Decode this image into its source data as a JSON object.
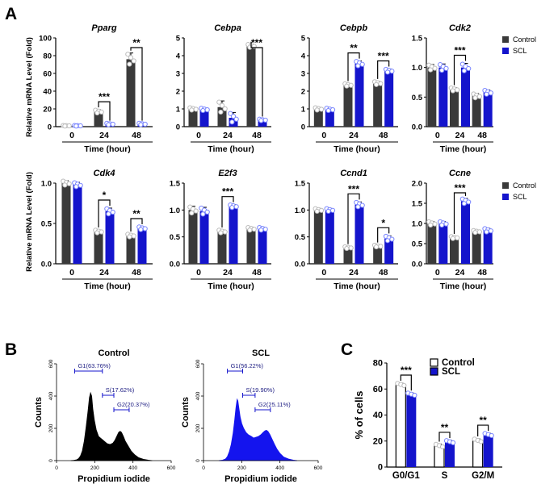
{
  "panel_letters": {
    "a": "A",
    "b": "B",
    "c": "C"
  },
  "colors": {
    "control": "#3a3a3a",
    "scl": "#1414cc",
    "histogram_control": "#000000",
    "histogram_scl": "#1414ee",
    "dot_control": "#bdbdbd",
    "dot_scl": "#7a86ff",
    "gate": "#1414cc"
  },
  "panel_a": {
    "ylabel": "Relative mRNA Level (Fold)",
    "xlabel": "Time (hour)",
    "legend": [
      "Control",
      "SCL"
    ]
  },
  "panel_b": {
    "xlabel": "Propidium iodide",
    "ylabel": "Counts"
  },
  "chart_data": [
    {
      "type": "bar",
      "title": "Pparg",
      "categories": [
        "0",
        "24",
        "48"
      ],
      "xlabel": "Time (hour)",
      "ylabel": "Relative mRNA Level (Fold)",
      "ylim": [
        0,
        100
      ],
      "yticks": [
        "0",
        "20",
        "40",
        "60",
        "80",
        "100"
      ],
      "series": [
        {
          "name": "Control",
          "values": [
            1,
            17,
            76
          ],
          "errors": [
            0.4,
            2,
            7
          ]
        },
        {
          "name": "SCL",
          "values": [
            1,
            3,
            3
          ],
          "errors": [
            0.4,
            1,
            1
          ]
        }
      ],
      "significance": [
        {
          "category": "24",
          "label": "***"
        },
        {
          "category": "48",
          "label": "**"
        }
      ]
    },
    {
      "type": "bar",
      "title": "Cebpa",
      "categories": [
        "0",
        "24",
        "48"
      ],
      "xlabel": "Time (hour)",
      "ylim": [
        0,
        5
      ],
      "yticks": [
        "0",
        "1",
        "2",
        "3",
        "4",
        "5"
      ],
      "series": [
        {
          "name": "Control",
          "values": [
            1.0,
            1.1,
            4.55
          ],
          "errors": [
            0.08,
            0.35,
            0.1
          ]
        },
        {
          "name": "SCL",
          "values": [
            0.97,
            0.5,
            0.38
          ],
          "errors": [
            0.08,
            0.3,
            0.05
          ]
        }
      ],
      "significance": [
        {
          "category": "48",
          "label": "***"
        }
      ]
    },
    {
      "type": "bar",
      "title": "Cebpb",
      "categories": [
        "0",
        "24",
        "48"
      ],
      "xlabel": "Time (hour)",
      "ylim": [
        0,
        5
      ],
      "yticks": [
        "0",
        "1",
        "2",
        "3",
        "4",
        "5"
      ],
      "series": [
        {
          "name": "Control",
          "values": [
            1.0,
            2.35,
            2.45
          ],
          "errors": [
            0.08,
            0.08,
            0.1
          ]
        },
        {
          "name": "SCL",
          "values": [
            0.97,
            3.55,
            3.15
          ],
          "errors": [
            0.08,
            0.15,
            0.1
          ]
        }
      ],
      "significance": [
        {
          "category": "24",
          "label": "**"
        },
        {
          "category": "48",
          "label": "***"
        }
      ]
    },
    {
      "type": "bar",
      "title": "Cdk2",
      "categories": [
        "0",
        "24",
        "48"
      ],
      "xlabel": "Time (hour)",
      "ylim": [
        0,
        1.5
      ],
      "yticks": [
        "0.0",
        "0.5",
        "1.0",
        "1.5"
      ],
      "series": [
        {
          "name": "Control",
          "values": [
            1.0,
            0.63,
            0.52
          ],
          "errors": [
            0.05,
            0.03,
            0.04
          ]
        },
        {
          "name": "SCL",
          "values": [
            1.0,
            1.0,
            0.58
          ],
          "errors": [
            0.06,
            0.07,
            0.04
          ]
        }
      ],
      "significance": [
        {
          "category": "24",
          "label": "***"
        }
      ],
      "legend": [
        "Control",
        "SCL"
      ]
    },
    {
      "type": "bar",
      "title": "Cdk4",
      "categories": [
        "0",
        "24",
        "48"
      ],
      "xlabel": "Time (hour)",
      "ylabel": "Relative mRNA Level (Fold)",
      "ylim": [
        0,
        1.0
      ],
      "yticks": [
        "0.0",
        "0.5",
        "1.0"
      ],
      "series": [
        {
          "name": "Control",
          "values": [
            1.0,
            0.4,
            0.35
          ],
          "errors": [
            0.03,
            0.02,
            0.02
          ]
        },
        {
          "name": "SCL",
          "values": [
            0.98,
            0.65,
            0.44
          ],
          "errors": [
            0.03,
            0.04,
            0.02
          ]
        }
      ],
      "significance": [
        {
          "category": "24",
          "label": "*"
        },
        {
          "category": "48",
          "label": "**"
        }
      ]
    },
    {
      "type": "bar",
      "title": "E2f3",
      "categories": [
        "0",
        "24",
        "48"
      ],
      "xlabel": "Time (hour)",
      "ylim": [
        0,
        1.5
      ],
      "yticks": [
        "0.0",
        "0.5",
        "1.0",
        "1.5"
      ],
      "series": [
        {
          "name": "Control",
          "values": [
            1.0,
            0.6,
            0.65
          ],
          "errors": [
            0.07,
            0.03,
            0.03
          ]
        },
        {
          "name": "SCL",
          "values": [
            0.98,
            1.07,
            0.65
          ],
          "errors": [
            0.07,
            0.03,
            0.03
          ]
        }
      ],
      "significance": [
        {
          "category": "24",
          "label": "***"
        }
      ]
    },
    {
      "type": "bar",
      "title": "Ccnd1",
      "categories": [
        "0",
        "24",
        "48"
      ],
      "xlabel": "Time (hour)",
      "ylim": [
        0,
        1.5
      ],
      "yticks": [
        "0.0",
        "0.5",
        "1.0",
        "1.5"
      ],
      "series": [
        {
          "name": "Control",
          "values": [
            1.0,
            0.3,
            0.33
          ],
          "errors": [
            0.03,
            0.02,
            0.02
          ]
        },
        {
          "name": "SCL",
          "values": [
            1.0,
            1.1,
            0.47
          ],
          "errors": [
            0.03,
            0.05,
            0.05
          ]
        }
      ],
      "significance": [
        {
          "category": "24",
          "label": "***"
        },
        {
          "category": "48",
          "label": "*"
        }
      ]
    },
    {
      "type": "bar",
      "title": "Ccne",
      "categories": [
        "0",
        "24",
        "48"
      ],
      "xlabel": "Time (hour)",
      "ylim": [
        0,
        2.0
      ],
      "yticks": [
        "0.0",
        "0.5",
        "1.0",
        "1.5",
        "2.0"
      ],
      "series": [
        {
          "name": "Control",
          "values": [
            1.0,
            0.65,
            0.8
          ],
          "errors": [
            0.05,
            0.03,
            0.03
          ]
        },
        {
          "name": "SCL",
          "values": [
            1.0,
            1.55,
            0.83
          ],
          "errors": [
            0.05,
            0.07,
            0.05
          ]
        }
      ],
      "significance": [
        {
          "category": "24",
          "label": "***"
        }
      ],
      "legend": [
        "Control",
        "SCL"
      ]
    },
    {
      "type": "histogram",
      "title": "Control",
      "xlabel": "Propidium iodide",
      "ylabel": "Counts",
      "xlim": [
        0,
        600
      ],
      "ylim": [
        0,
        600
      ],
      "xticks": [
        "0",
        "200",
        "400",
        "600"
      ],
      "yticks": [
        "0",
        "200",
        "400",
        "600"
      ],
      "density": [
        [
          75,
          0
        ],
        [
          90,
          2
        ],
        [
          105,
          5
        ],
        [
          115,
          12
        ],
        [
          125,
          28
        ],
        [
          135,
          60
        ],
        [
          145,
          120
        ],
        [
          155,
          210
        ],
        [
          165,
          310
        ],
        [
          172,
          390
        ],
        [
          178,
          420
        ],
        [
          184,
          400
        ],
        [
          190,
          320
        ],
        [
          198,
          250
        ],
        [
          208,
          190
        ],
        [
          220,
          150
        ],
        [
          235,
          135
        ],
        [
          250,
          120
        ],
        [
          265,
          105
        ],
        [
          280,
          100
        ],
        [
          295,
          108
        ],
        [
          305,
          125
        ],
        [
          315,
          150
        ],
        [
          325,
          175
        ],
        [
          333,
          182
        ],
        [
          340,
          175
        ],
        [
          350,
          150
        ],
        [
          360,
          120
        ],
        [
          375,
          90
        ],
        [
          390,
          60
        ],
        [
          410,
          35
        ],
        [
          430,
          18
        ],
        [
          455,
          8
        ],
        [
          480,
          3
        ],
        [
          500,
          0
        ]
      ],
      "gates": [
        {
          "label": "G1(63.76%)",
          "from": 95,
          "to": 240
        },
        {
          "label": "S(17.62%)",
          "from": 240,
          "to": 300
        },
        {
          "label": "G2(20.37%)",
          "from": 300,
          "to": 380
        }
      ]
    },
    {
      "type": "histogram",
      "title": "SCL",
      "xlabel": "Propidium iodide",
      "ylabel": "Counts",
      "xlim": [
        0,
        600
      ],
      "ylim": [
        0,
        600
      ],
      "xticks": [
        "0",
        "200",
        "400",
        "600"
      ],
      "yticks": [
        "0",
        "200",
        "400",
        "600"
      ],
      "density": [
        [
          80,
          0
        ],
        [
          100,
          3
        ],
        [
          115,
          10
        ],
        [
          125,
          25
        ],
        [
          135,
          55
        ],
        [
          145,
          100
        ],
        [
          155,
          170
        ],
        [
          163,
          250
        ],
        [
          170,
          330
        ],
        [
          176,
          380
        ],
        [
          180,
          370
        ],
        [
          186,
          320
        ],
        [
          192,
          270
        ],
        [
          200,
          230
        ],
        [
          210,
          200
        ],
        [
          222,
          175
        ],
        [
          235,
          160
        ],
        [
          250,
          150
        ],
        [
          262,
          140
        ],
        [
          275,
          145
        ],
        [
          288,
          150
        ],
        [
          300,
          160
        ],
        [
          312,
          175
        ],
        [
          322,
          185
        ],
        [
          330,
          188
        ],
        [
          338,
          180
        ],
        [
          348,
          160
        ],
        [
          360,
          130
        ],
        [
          372,
          100
        ],
        [
          385,
          70
        ],
        [
          400,
          45
        ],
        [
          420,
          22
        ],
        [
          445,
          10
        ],
        [
          470,
          3
        ],
        [
          490,
          0
        ]
      ],
      "gates": [
        {
          "label": "G1(56.22%)",
          "from": 125,
          "to": 205
        },
        {
          "label": "S(19.90%)",
          "from": 205,
          "to": 270
        },
        {
          "label": "G2(25.11%)",
          "from": 270,
          "to": 350
        }
      ]
    },
    {
      "type": "bar",
      "title": "",
      "categories": [
        "G0/G1",
        "S",
        "G2/M"
      ],
      "xlabel": "",
      "ylabel": "% of cells",
      "ylim": [
        0,
        80
      ],
      "yticks": [
        "0",
        "20",
        "40",
        "60",
        "80"
      ],
      "series": [
        {
          "name": "Control",
          "values": [
            63.5,
            16.5,
            20.5
          ],
          "errors": [
            1.0,
            1.2,
            1.2
          ]
        },
        {
          "name": "SCL",
          "values": [
            56.0,
            19.5,
            25.0
          ],
          "errors": [
            1.0,
            1.0,
            1.0
          ]
        }
      ],
      "significance": [
        {
          "category": "G0/G1",
          "label": "***"
        },
        {
          "category": "S",
          "label": "**"
        },
        {
          "category": "G2/M",
          "label": "**"
        }
      ],
      "legend": [
        "Control",
        "SCL"
      ]
    }
  ]
}
